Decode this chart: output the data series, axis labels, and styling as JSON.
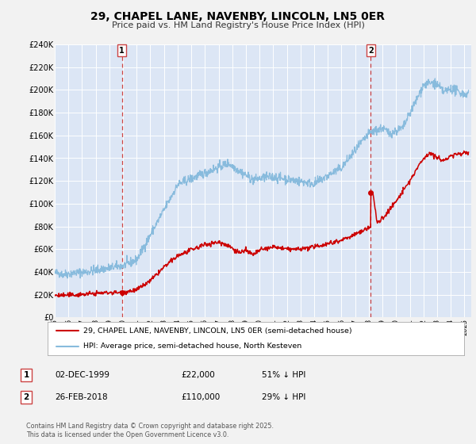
{
  "title": "29, CHAPEL LANE, NAVENBY, LINCOLN, LN5 0ER",
  "subtitle": "Price paid vs. HM Land Registry's House Price Index (HPI)",
  "ylim": [
    0,
    240000
  ],
  "xlim_start": 1995.0,
  "xlim_end": 2025.5,
  "background_color": "#f2f2f2",
  "plot_bg_color": "#dce6f5",
  "grid_color": "#ffffff",
  "red_line_color": "#cc0000",
  "blue_line_color": "#88aacc",
  "marker1_x": 1999.92,
  "marker1_y": 22000,
  "marker2_x": 2018.15,
  "marker2_y": 110000,
  "vline1_x": 1999.92,
  "vline2_x": 2018.15,
  "legend_line1": "29, CHAPEL LANE, NAVENBY, LINCOLN, LN5 0ER (semi-detached house)",
  "legend_line2": "HPI: Average price, semi-detached house, North Kesteven",
  "annotation1_date": "02-DEC-1999",
  "annotation1_price": "£22,000",
  "annotation1_hpi": "51% ↓ HPI",
  "annotation2_date": "26-FEB-2018",
  "annotation2_price": "£110,000",
  "annotation2_hpi": "29% ↓ HPI",
  "footer": "Contains HM Land Registry data © Crown copyright and database right 2025.\nThis data is licensed under the Open Government Licence v3.0.",
  "title_fontsize": 10,
  "subtitle_fontsize": 8,
  "ytick_labels": [
    "£0",
    "£20K",
    "£40K",
    "£60K",
    "£80K",
    "£100K",
    "£120K",
    "£140K",
    "£160K",
    "£180K",
    "£200K",
    "£220K",
    "£240K"
  ],
  "ytick_values": [
    0,
    20000,
    40000,
    60000,
    80000,
    100000,
    120000,
    140000,
    160000,
    180000,
    200000,
    220000,
    240000
  ]
}
